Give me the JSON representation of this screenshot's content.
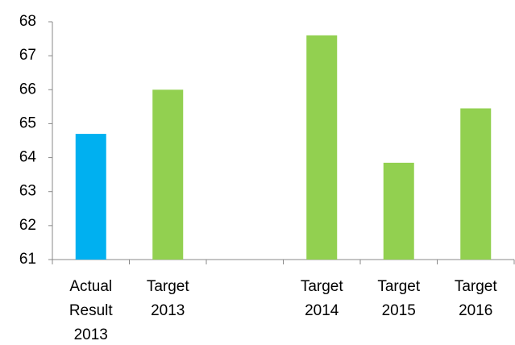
{
  "chart_data": {
    "type": "bar",
    "categories": [
      "Actual Result 2013",
      "Target 2013",
      null,
      "Target 2014",
      "Target 2015",
      "Target 2016"
    ],
    "values": [
      64.7,
      66.0,
      null,
      67.6,
      63.85,
      65.45
    ],
    "colors": [
      "#00b0f0",
      "#92d050",
      "#92d050",
      "#92d050",
      "#92d050",
      "#92d050"
    ],
    "ylim": [
      61,
      68
    ],
    "yticks": [
      61,
      62,
      63,
      64,
      65,
      66,
      67,
      68
    ],
    "grid": false
  }
}
